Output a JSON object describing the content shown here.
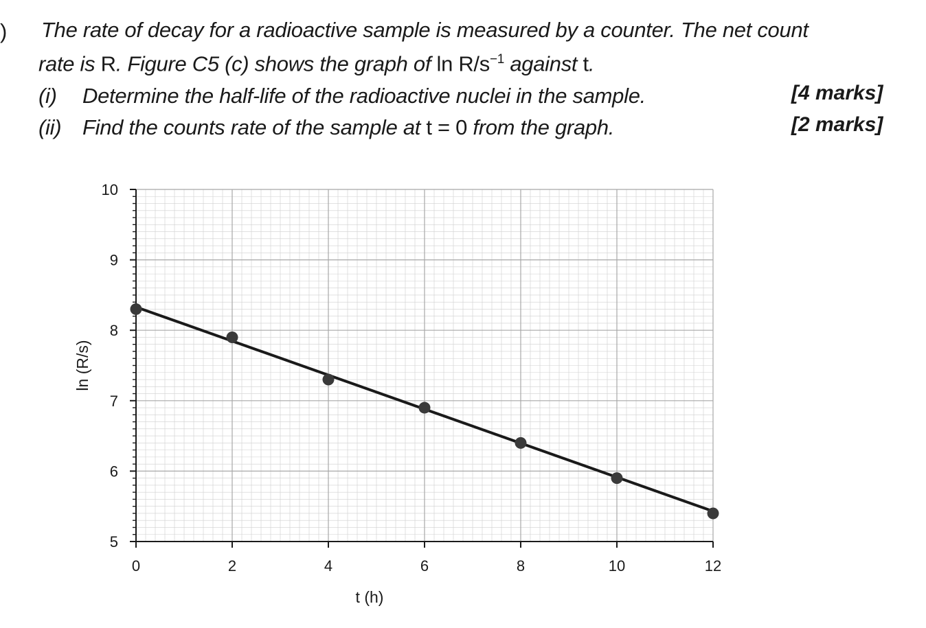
{
  "question": {
    "paren": ")",
    "line1": "The rate of decay for a radioactive sample is measured by a counter. The net count",
    "line2_a": "rate is ",
    "line2_b": "R",
    "line2_c": ". Figure C5 (c) shows the graph of ",
    "line2_d": "ln R/s",
    "line2_e": "−1",
    "line2_f": " against ",
    "line2_g": "t",
    "line2_h": ".",
    "part_i_label": "(i)",
    "part_i_text": "Determine the half-life of the radioactive nuclei in the sample.",
    "part_i_marks": "[4 marks]",
    "part_ii_label": "(ii)",
    "part_ii_text_a": "Find the counts rate of the sample at ",
    "part_ii_text_b": "t = 0",
    "part_ii_text_c": " from the graph.",
    "part_ii_marks": "[2 marks]"
  },
  "colors": {
    "grid": "#cfcfcf",
    "axis": "#1a1a1a",
    "line": "#1a1a1a",
    "point": "#3a3a3a"
  },
  "chart_data": {
    "type": "scatter",
    "title": "",
    "xlabel": "t (h)",
    "ylabel": "ln (R/s)",
    "xlim": [
      0,
      12
    ],
    "ylim": [
      5,
      10
    ],
    "xticks": [
      "0",
      "2",
      "4",
      "6",
      "8",
      "10",
      "12"
    ],
    "yticks": [
      "5",
      "6",
      "7",
      "8",
      "9",
      "10"
    ],
    "grid": true,
    "series": [
      {
        "x": [
          0,
          2,
          4,
          6,
          8,
          10,
          12
        ],
        "y": [
          8.3,
          7.9,
          7.3,
          6.9,
          6.4,
          5.9,
          5.4
        ]
      }
    ],
    "best_fit_line": {
      "x": [
        0,
        12
      ],
      "y": [
        8.33,
        5.43
      ]
    }
  }
}
